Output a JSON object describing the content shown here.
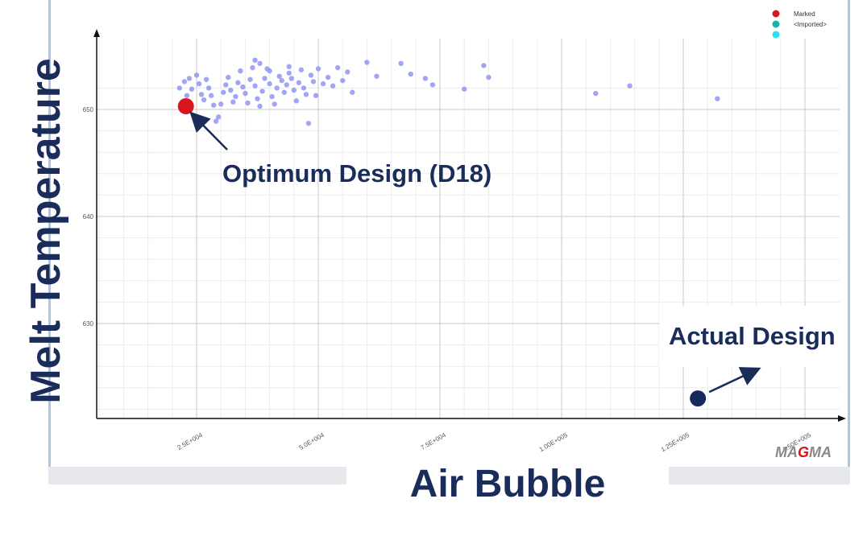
{
  "chart_data": {
    "type": "scatter",
    "title": "",
    "xlabel": "Air Bubble",
    "ylabel": "Melt Temperature",
    "xlim": [
      0,
      150000
    ],
    "ylim": [
      621,
      651.5
    ],
    "x_ticks": [
      {
        "value": 25000,
        "label": "2.5E+004"
      },
      {
        "value": 50000,
        "label": "5.0E+004"
      },
      {
        "value": 75000,
        "label": "7.5E+004"
      },
      {
        "value": 100000,
        "label": "1.00E+005"
      },
      {
        "value": 125000,
        "label": "1.25E+005"
      },
      {
        "value": 150000,
        "label": "1.50E+005"
      }
    ],
    "y_ticks": [
      {
        "value": 630,
        "label": "630"
      },
      {
        "value": 640,
        "label": "640"
      },
      {
        "value": 650,
        "label": "650"
      }
    ],
    "grid": true,
    "legend": {
      "position": "top-right",
      "entries": [
        {
          "label": "Marked",
          "color": "#d9161f"
        },
        {
          "label": "<Imported>",
          "color": "#17b3a8"
        },
        {
          "label": "",
          "color": "#22e4f0"
        }
      ]
    },
    "series": [
      {
        "color": "#8f96f2",
        "points": [
          [
            21500,
            652.0
          ],
          [
            22500,
            652.6
          ],
          [
            23000,
            651.3
          ],
          [
            23500,
            652.9
          ],
          [
            24000,
            651.9
          ],
          [
            25000,
            653.2
          ],
          [
            25500,
            652.4
          ],
          [
            26000,
            651.4
          ],
          [
            26500,
            650.9
          ],
          [
            27000,
            652.8
          ],
          [
            27500,
            652.0
          ],
          [
            28000,
            651.3
          ],
          [
            28500,
            650.4
          ],
          [
            29000,
            648.9
          ],
          [
            29500,
            649.3
          ],
          [
            30000,
            650.5
          ],
          [
            30500,
            651.6
          ],
          [
            31000,
            652.3
          ],
          [
            31500,
            653.0
          ],
          [
            32000,
            651.8
          ],
          [
            32500,
            650.7
          ],
          [
            33000,
            651.2
          ],
          [
            33500,
            652.5
          ],
          [
            34000,
            653.6
          ],
          [
            34500,
            652.1
          ],
          [
            35000,
            651.5
          ],
          [
            35500,
            650.6
          ],
          [
            36000,
            652.8
          ],
          [
            36500,
            653.9
          ],
          [
            37000,
            652.2
          ],
          [
            37500,
            651.0
          ],
          [
            38000,
            650.3
          ],
          [
            38500,
            651.7
          ],
          [
            39000,
            652.9
          ],
          [
            39500,
            653.8
          ],
          [
            40000,
            652.4
          ],
          [
            40500,
            651.2
          ],
          [
            41000,
            650.5
          ],
          [
            41500,
            652.0
          ],
          [
            42000,
            653.1
          ],
          [
            42500,
            652.7
          ],
          [
            43000,
            651.6
          ],
          [
            43500,
            652.3
          ],
          [
            44000,
            653.4
          ],
          [
            44500,
            652.9
          ],
          [
            45000,
            651.8
          ],
          [
            45500,
            650.8
          ],
          [
            46000,
            652.5
          ],
          [
            46500,
            653.7
          ],
          [
            47000,
            652.0
          ],
          [
            47500,
            651.4
          ],
          [
            48000,
            648.7
          ],
          [
            48500,
            653.2
          ],
          [
            49000,
            652.6
          ],
          [
            49500,
            651.3
          ],
          [
            50000,
            653.8
          ],
          [
            51000,
            652.4
          ],
          [
            52000,
            653.0
          ],
          [
            53000,
            652.2
          ],
          [
            54000,
            653.9
          ],
          [
            55000,
            652.7
          ],
          [
            56000,
            653.5
          ],
          [
            57000,
            651.6
          ],
          [
            38000,
            654.3
          ],
          [
            37000,
            654.6
          ],
          [
            40000,
            653.6
          ],
          [
            44000,
            654.0
          ],
          [
            60000,
            654.4
          ],
          [
            62000,
            653.1
          ],
          [
            67000,
            654.3
          ],
          [
            69000,
            653.3
          ],
          [
            72000,
            652.9
          ],
          [
            73500,
            652.3
          ],
          [
            80000,
            651.9
          ],
          [
            84000,
            654.1
          ],
          [
            85000,
            653.0
          ],
          [
            107000,
            651.5
          ],
          [
            114000,
            652.2
          ],
          [
            132000,
            651.0
          ]
        ]
      }
    ],
    "marked_point": {
      "x": 22800,
      "y": 650.3
    },
    "actual_design_point": {
      "x": 128000,
      "y": 623.0
    },
    "annotations": [
      {
        "text": "Optimum Design (D18)"
      },
      {
        "text": "Actual Design"
      }
    ],
    "logo_text": "MAGMA"
  }
}
